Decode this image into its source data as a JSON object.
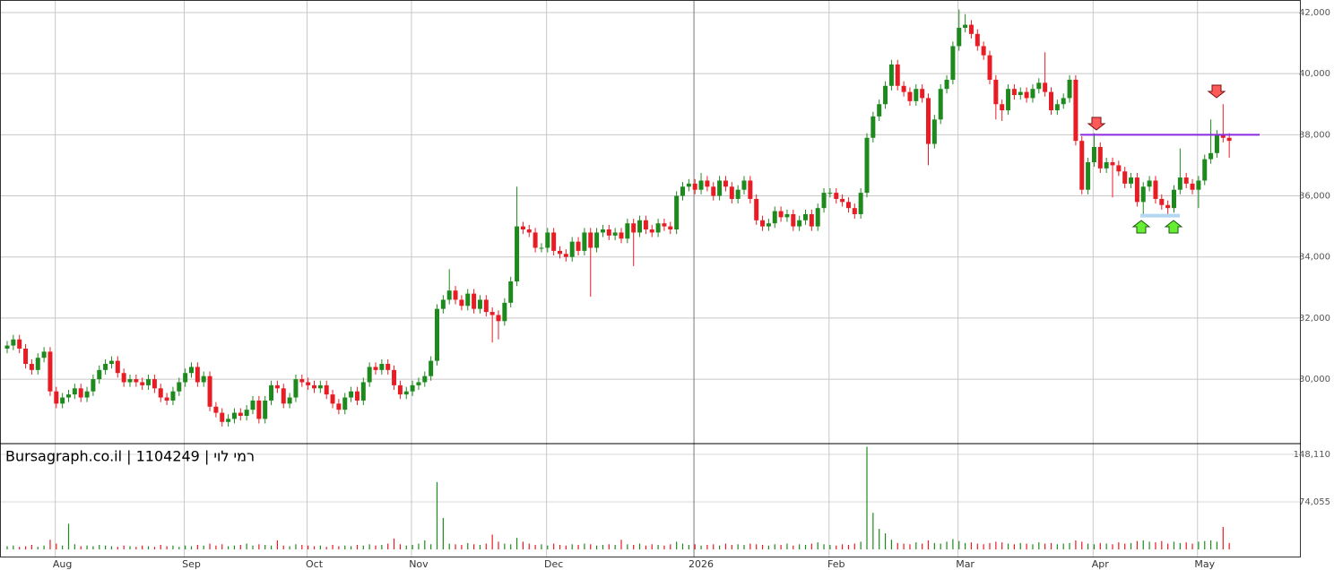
{
  "chart_data": {
    "type": "candlestick",
    "title": "Bursagraph.co.il | 1104249 | רמי לוי",
    "categories": [
      null,
      null,
      null,
      null,
      null,
      null,
      null,
      null,
      null,
      "Aug",
      null,
      null,
      null,
      null,
      null,
      null,
      null,
      null,
      null,
      null,
      null,
      null,
      null,
      null,
      null,
      null,
      null,
      null,
      null,
      null,
      "Sep",
      null,
      null,
      null,
      null,
      null,
      null,
      null,
      null,
      null,
      null,
      null,
      null,
      null,
      null,
      null,
      null,
      null,
      null,
      null,
      "Oct",
      null,
      null,
      null,
      null,
      null,
      null,
      null,
      null,
      null,
      null,
      null,
      null,
      null,
      null,
      null,
      null,
      "Nov",
      null,
      null,
      null,
      null,
      null,
      null,
      null,
      null,
      null,
      null,
      null,
      null,
      null,
      null,
      null,
      null,
      null,
      null,
      null,
      null,
      null,
      "Dec",
      null,
      null,
      null,
      null,
      null,
      null,
      null,
      null,
      null,
      null,
      null,
      null,
      null,
      null,
      null,
      null,
      null,
      null,
      null,
      null,
      null,
      null,
      null,
      "2026",
      null,
      null,
      null,
      null,
      null,
      null,
      null,
      null,
      null,
      null,
      null,
      null,
      null,
      null,
      null,
      null,
      null,
      null,
      null,
      null,
      null,
      "Feb",
      null,
      null,
      null,
      null,
      null,
      null,
      null,
      null,
      null,
      null,
      null,
      null,
      null,
      null,
      null,
      null,
      null,
      null,
      null,
      null,
      "Mar",
      null,
      null,
      null,
      null,
      null,
      null,
      null,
      null,
      null,
      null,
      null,
      null,
      null,
      null,
      null,
      null,
      null,
      null,
      null,
      null,
      null,
      "Apr",
      null,
      null,
      null,
      null,
      null,
      null,
      null,
      null,
      null,
      null,
      null,
      null,
      null,
      null,
      null,
      null,
      "May",
      null,
      null,
      null,
      null
    ],
    "open": [
      31000,
      31100,
      31300,
      31000,
      30500,
      30300,
      30700,
      30900,
      29600,
      29200,
      29400,
      29500,
      29700,
      29400,
      29600,
      30000,
      30300,
      30500,
      30600,
      30200,
      29900,
      30000,
      29900,
      29800,
      30000,
      29700,
      29400,
      29300,
      29600,
      29900,
      30200,
      30400,
      29900,
      30100,
      29100,
      28900,
      28600,
      28700,
      28900,
      28800,
      29000,
      29300,
      28700,
      29300,
      29800,
      29700,
      29200,
      29400,
      30000,
      29900,
      29800,
      29700,
      29800,
      29500,
      29200,
      29000,
      29400,
      29600,
      29300,
      29900,
      30400,
      30300,
      30500,
      30300,
      29800,
      29500,
      29600,
      29800,
      29900,
      30100,
      30600,
      32300,
      32600,
      32900,
      32600,
      32400,
      32800,
      32300,
      32600,
      32200,
      32100,
      31900,
      32500,
      33200,
      35000,
      34900,
      34800,
      34300,
      34300,
      34800,
      34200,
      34100,
      34000,
      34500,
      34200,
      34800,
      34300,
      34800,
      34900,
      34700,
      34800,
      34600,
      35100,
      34800,
      35200,
      34900,
      34800,
      35100,
      35000,
      34900,
      36000,
      36300,
      36400,
      36200,
      36500,
      36300,
      36000,
      36500,
      36300,
      35900,
      36200,
      36500,
      35900,
      35200,
      35000,
      35100,
      35500,
      35300,
      35400,
      35000,
      35200,
      35400,
      35000,
      35600,
      36100,
      36100,
      35900,
      35800,
      35600,
      35400,
      36100,
      37900,
      38600,
      39000,
      39600,
      40300,
      39600,
      39400,
      39100,
      39500,
      39200,
      37700,
      38500,
      39500,
      39800,
      40900,
      41500,
      41600,
      41300,
      40900,
      40600,
      39800,
      39000,
      38800,
      39500,
      39300,
      39400,
      39200,
      39500,
      39700,
      39400,
      38800,
      39000,
      39200,
      39800,
      37800,
      36200,
      37100,
      37600,
      36900,
      37100,
      37000,
      36800,
      36400,
      36600,
      35800,
      36300,
      36500,
      35900,
      35700,
      35600,
      36200,
      36600,
      36400,
      36200,
      36500,
      37200,
      37400,
      38000,
      37900
    ],
    "high": [
      31250,
      31450,
      31450,
      31150,
      30650,
      30850,
      31050,
      31050,
      29750,
      29550,
      29650,
      29850,
      29850,
      29750,
      30150,
      30450,
      30650,
      30750,
      30750,
      30350,
      30150,
      30150,
      30050,
      30150,
      30150,
      29850,
      29550,
      29750,
      30050,
      30350,
      30550,
      30550,
      30250,
      30250,
      29250,
      29050,
      28850,
      29050,
      29050,
      29150,
      29450,
      29450,
      29450,
      29950,
      29950,
      29850,
      29550,
      30150,
      30150,
      30050,
      29950,
      29950,
      29950,
      29650,
      29350,
      29550,
      29750,
      29750,
      30050,
      30550,
      30550,
      30650,
      30650,
      30450,
      29950,
      29750,
      29950,
      30050,
      30250,
      30750,
      32450,
      32750,
      33600,
      33050,
      32750,
      32950,
      32950,
      32750,
      32750,
      32350,
      32250,
      32650,
      33350,
      36300,
      35150,
      35050,
      34950,
      34450,
      34950,
      34950,
      34350,
      34250,
      34650,
      34650,
      34950,
      34950,
      34950,
      35050,
      35050,
      34950,
      34950,
      35250,
      35250,
      35350,
      35350,
      35050,
      35250,
      35250,
      35150,
      36150,
      36450,
      36550,
      36550,
      36750,
      36650,
      36450,
      36650,
      36650,
      36450,
      36350,
      36650,
      36650,
      36050,
      35350,
      35250,
      35650,
      35650,
      35550,
      35550,
      35350,
      35550,
      35550,
      35750,
      36250,
      36250,
      36250,
      36050,
      35950,
      35750,
      36250,
      38050,
      38750,
      39150,
      39750,
      40450,
      40450,
      39750,
      39550,
      39650,
      39650,
      39350,
      38650,
      39650,
      39950,
      41050,
      42100,
      41950,
      41750,
      41450,
      41050,
      40750,
      39950,
      39150,
      39650,
      39650,
      39550,
      39550,
      39650,
      39850,
      40700,
      39550,
      39150,
      39350,
      39950,
      39950,
      37950,
      37250,
      38050,
      37750,
      37250,
      37250,
      37150,
      36950,
      36750,
      36750,
      36450,
      36650,
      36650,
      36050,
      35850,
      36350,
      37550,
      36750,
      36550,
      36650,
      37350,
      38500,
      38150,
      39000,
      38050
    ],
    "low": [
      30850,
      30950,
      30850,
      30350,
      30150,
      30150,
      30550,
      29450,
      29050,
      29050,
      29250,
      29350,
      29250,
      29250,
      29450,
      29850,
      30150,
      30350,
      30050,
      29750,
      29750,
      29750,
      29650,
      29650,
      29550,
      29250,
      29150,
      29150,
      29450,
      29750,
      30050,
      29750,
      29750,
      28950,
      28750,
      28450,
      28450,
      28550,
      28650,
      28650,
      28850,
      28550,
      28550,
      29150,
      29550,
      29050,
      29050,
      29250,
      29750,
      29650,
      29550,
      29550,
      29350,
      29050,
      28850,
      28850,
      29250,
      29150,
      29150,
      29750,
      30150,
      30150,
      30150,
      29650,
      29350,
      29350,
      29450,
      29650,
      29750,
      29950,
      30450,
      32150,
      32450,
      32450,
      32250,
      32250,
      32150,
      32150,
      32050,
      31200,
      31300,
      31750,
      32350,
      33050,
      34750,
      34650,
      34150,
      34150,
      34150,
      34050,
      33950,
      33850,
      33850,
      34050,
      34050,
      32700,
      34150,
      34650,
      34550,
      34550,
      34450,
      34450,
      33700,
      34650,
      34750,
      34650,
      34650,
      34850,
      34750,
      34750,
      35850,
      36150,
      36050,
      36050,
      36150,
      35850,
      35850,
      36150,
      35750,
      35750,
      36050,
      35750,
      35050,
      34850,
      34850,
      34950,
      35150,
      35150,
      34850,
      34850,
      35050,
      34850,
      34850,
      35450,
      35950,
      35750,
      35650,
      35450,
      35250,
      35250,
      35950,
      37750,
      38450,
      38850,
      39450,
      39450,
      39250,
      38950,
      38950,
      39050,
      37000,
      37550,
      38350,
      39350,
      39650,
      40750,
      41350,
      41150,
      40750,
      40450,
      39650,
      38500,
      38450,
      38650,
      39150,
      39150,
      39050,
      39050,
      39350,
      39250,
      38650,
      38650,
      38850,
      39050,
      37650,
      36050,
      36050,
      36950,
      36750,
      36750,
      35950,
      36650,
      36250,
      36250,
      35650,
      35350,
      36150,
      35750,
      35550,
      35350,
      35450,
      36050,
      36250,
      36050,
      35600,
      36350,
      37050,
      37250,
      37750,
      37250
    ],
    "close": [
      31100,
      31300,
      31000,
      30500,
      30300,
      30700,
      30900,
      29600,
      29200,
      29400,
      29500,
      29700,
      29400,
      29600,
      30000,
      30300,
      30500,
      30600,
      30200,
      29900,
      30000,
      29900,
      29800,
      30000,
      29700,
      29400,
      29300,
      29600,
      29900,
      30200,
      30400,
      29900,
      30100,
      29100,
      28900,
      28600,
      28700,
      28900,
      28800,
      29000,
      29300,
      28700,
      29300,
      29800,
      29700,
      29200,
      29400,
      30000,
      29900,
      29800,
      29700,
      29800,
      29500,
      29200,
      29000,
      29400,
      29600,
      29300,
      29900,
      30400,
      30300,
      30500,
      30300,
      29800,
      29500,
      29600,
      29800,
      29900,
      30100,
      30600,
      32300,
      32600,
      32900,
      32600,
      32400,
      32800,
      32300,
      32600,
      32200,
      32100,
      31900,
      32500,
      33200,
      35000,
      34900,
      34800,
      34300,
      34300,
      34800,
      34200,
      34100,
      34000,
      34500,
      34200,
      34800,
      34300,
      34800,
      34900,
      34700,
      34800,
      34600,
      35100,
      34800,
      35200,
      34900,
      34800,
      35100,
      35000,
      34900,
      36000,
      36300,
      36400,
      36200,
      36500,
      36300,
      36000,
      36500,
      36300,
      35900,
      36200,
      36500,
      35900,
      35200,
      35000,
      35100,
      35500,
      35300,
      35400,
      35000,
      35200,
      35400,
      35000,
      35600,
      36100,
      36100,
      35900,
      35800,
      35600,
      35400,
      36100,
      37900,
      38600,
      39000,
      39600,
      40300,
      39600,
      39400,
      39100,
      39500,
      39200,
      37700,
      38500,
      39500,
      39800,
      40900,
      41500,
      41600,
      41300,
      40900,
      40600,
      39800,
      39000,
      38800,
      39500,
      39300,
      39400,
      39200,
      39500,
      39700,
      39400,
      38800,
      39000,
      39200,
      39800,
      37800,
      36200,
      37100,
      37600,
      36900,
      37100,
      37000,
      36800,
      36400,
      36600,
      35800,
      36300,
      36500,
      35900,
      35700,
      35600,
      36200,
      36600,
      36400,
      36200,
      36500,
      37200,
      37400,
      38000,
      37900,
      37800
    ],
    "volume": [
      5000,
      6000,
      4000,
      5000,
      7000,
      4000,
      6000,
      15000,
      9000,
      6000,
      40000,
      8000,
      5000,
      6000,
      5000,
      7000,
      6000,
      5000,
      4000,
      6000,
      5000,
      4000,
      6000,
      5000,
      4000,
      7000,
      5000,
      6000,
      4000,
      6000,
      5000,
      7000,
      6000,
      9000,
      6000,
      8000,
      5000,
      6000,
      7000,
      9000,
      6000,
      8000,
      7000,
      6000,
      14000,
      6000,
      5000,
      8000,
      7000,
      6000,
      5000,
      6000,
      4000,
      7000,
      5000,
      6000,
      5000,
      7000,
      6000,
      8000,
      6000,
      7000,
      9000,
      17000,
      8000,
      6000,
      7000,
      9000,
      14000,
      8000,
      105000,
      49000,
      9000,
      8000,
      7000,
      10000,
      8000,
      7000,
      9000,
      23000,
      12000,
      9000,
      8000,
      18000,
      12000,
      9000,
      7000,
      8000,
      6000,
      9000,
      7000,
      6000,
      8000,
      7000,
      9000,
      8000,
      6000,
      7000,
      8000,
      7000,
      15000,
      8000,
      7000,
      9000,
      6000,
      8000,
      7000,
      6000,
      8000,
      12000,
      9000,
      7000,
      8000,
      6000,
      7000,
      8000,
      6000,
      9000,
      7000,
      8000,
      7000,
      9000,
      8000,
      7000,
      6000,
      8000,
      7000,
      9000,
      6000,
      8000,
      7000,
      9000,
      11000,
      8000,
      7000,
      6000,
      8000,
      7000,
      9000,
      12000,
      160000,
      57000,
      32000,
      25000,
      15000,
      10000,
      9000,
      8000,
      11000,
      9000,
      14000,
      10000,
      9000,
      12000,
      16000,
      13000,
      10000,
      11000,
      9000,
      8000,
      10000,
      12000,
      11000,
      9000,
      8000,
      10000,
      9000,
      8000,
      11000,
      9000,
      10000,
      8000,
      9000,
      10000,
      14000,
      12000,
      9000,
      8000,
      10000,
      9000,
      8000,
      11000,
      9000,
      10000,
      13000,
      14000,
      12000,
      11000,
      13000,
      9000,
      12000,
      10000,
      11000,
      9000,
      12000,
      13000,
      14000,
      12000,
      35000,
      10000
    ],
    "up_color": "#1e8a1e",
    "down_color": "#e81c24",
    "ylim": [
      27890,
      42410
    ],
    "yticks": [
      {
        "value": 30000,
        "label": "30,000"
      },
      {
        "value": 32000,
        "label": "32,000"
      },
      {
        "value": 34000,
        "label": "34,000"
      },
      {
        "value": 36000,
        "label": "36,000"
      },
      {
        "value": 38000,
        "label": "38,000"
      },
      {
        "value": 40000,
        "label": "40,000"
      },
      {
        "value": 42000,
        "label": "42,000"
      }
    ],
    "volume_ylim": [
      -12576,
      164880
    ],
    "volume_yticks": [
      {
        "value": 74055,
        "label": "74,055"
      },
      {
        "value": 148110,
        "label": "148,110"
      }
    ],
    "levels": [
      {
        "value": 38000,
        "color": "#8a2be2"
      },
      {
        "value": 35350,
        "color": "#b4d8f2"
      }
    ],
    "grid": true
  }
}
